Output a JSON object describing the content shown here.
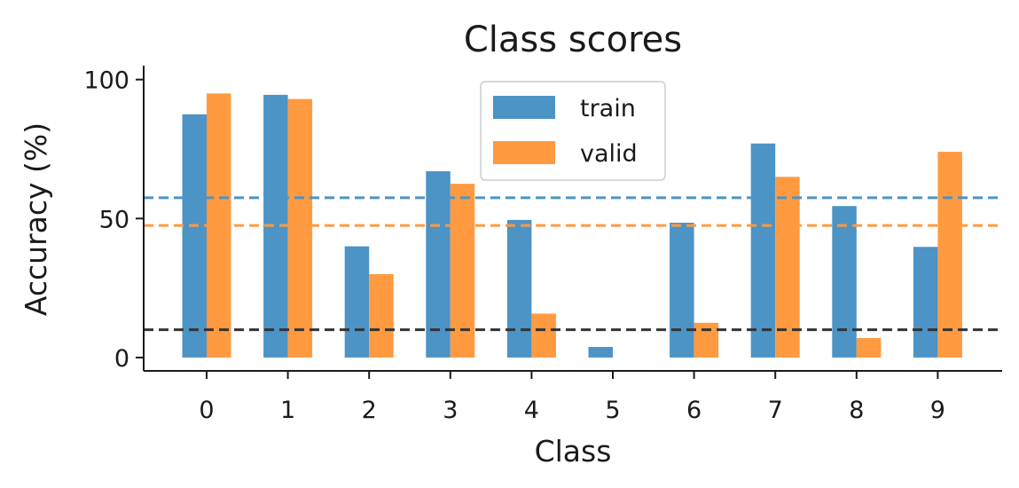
{
  "chart_data": {
    "type": "bar",
    "title": "Class scores",
    "xlabel": "Class",
    "ylabel": "Accuracy (%)",
    "categories": [
      "0",
      "1",
      "2",
      "3",
      "4",
      "5",
      "6",
      "7",
      "8",
      "9"
    ],
    "series": [
      {
        "name": "train",
        "color": "#4c93c6",
        "values": [
          87.5,
          94.5,
          40.0,
          67.0,
          49.5,
          3.8,
          48.5,
          77.0,
          54.5,
          39.8
        ]
      },
      {
        "name": "valid",
        "color": "#ff9a40",
        "values": [
          95.0,
          93.0,
          30.0,
          62.5,
          15.8,
          0.0,
          12.5,
          65.0,
          7.0,
          74.0
        ]
      }
    ],
    "reference_lines": [
      {
        "value": 57.5,
        "color": "#4c93c6",
        "style": "dashed"
      },
      {
        "value": 47.5,
        "color": "#ff9a40",
        "style": "dashed"
      },
      {
        "value": 10.0,
        "color": "#333333",
        "style": "dashed"
      }
    ],
    "yticks": [
      0,
      50,
      100
    ],
    "ylim": [
      -4.8,
      105
    ],
    "grid": false,
    "legend_position": "top-center"
  }
}
